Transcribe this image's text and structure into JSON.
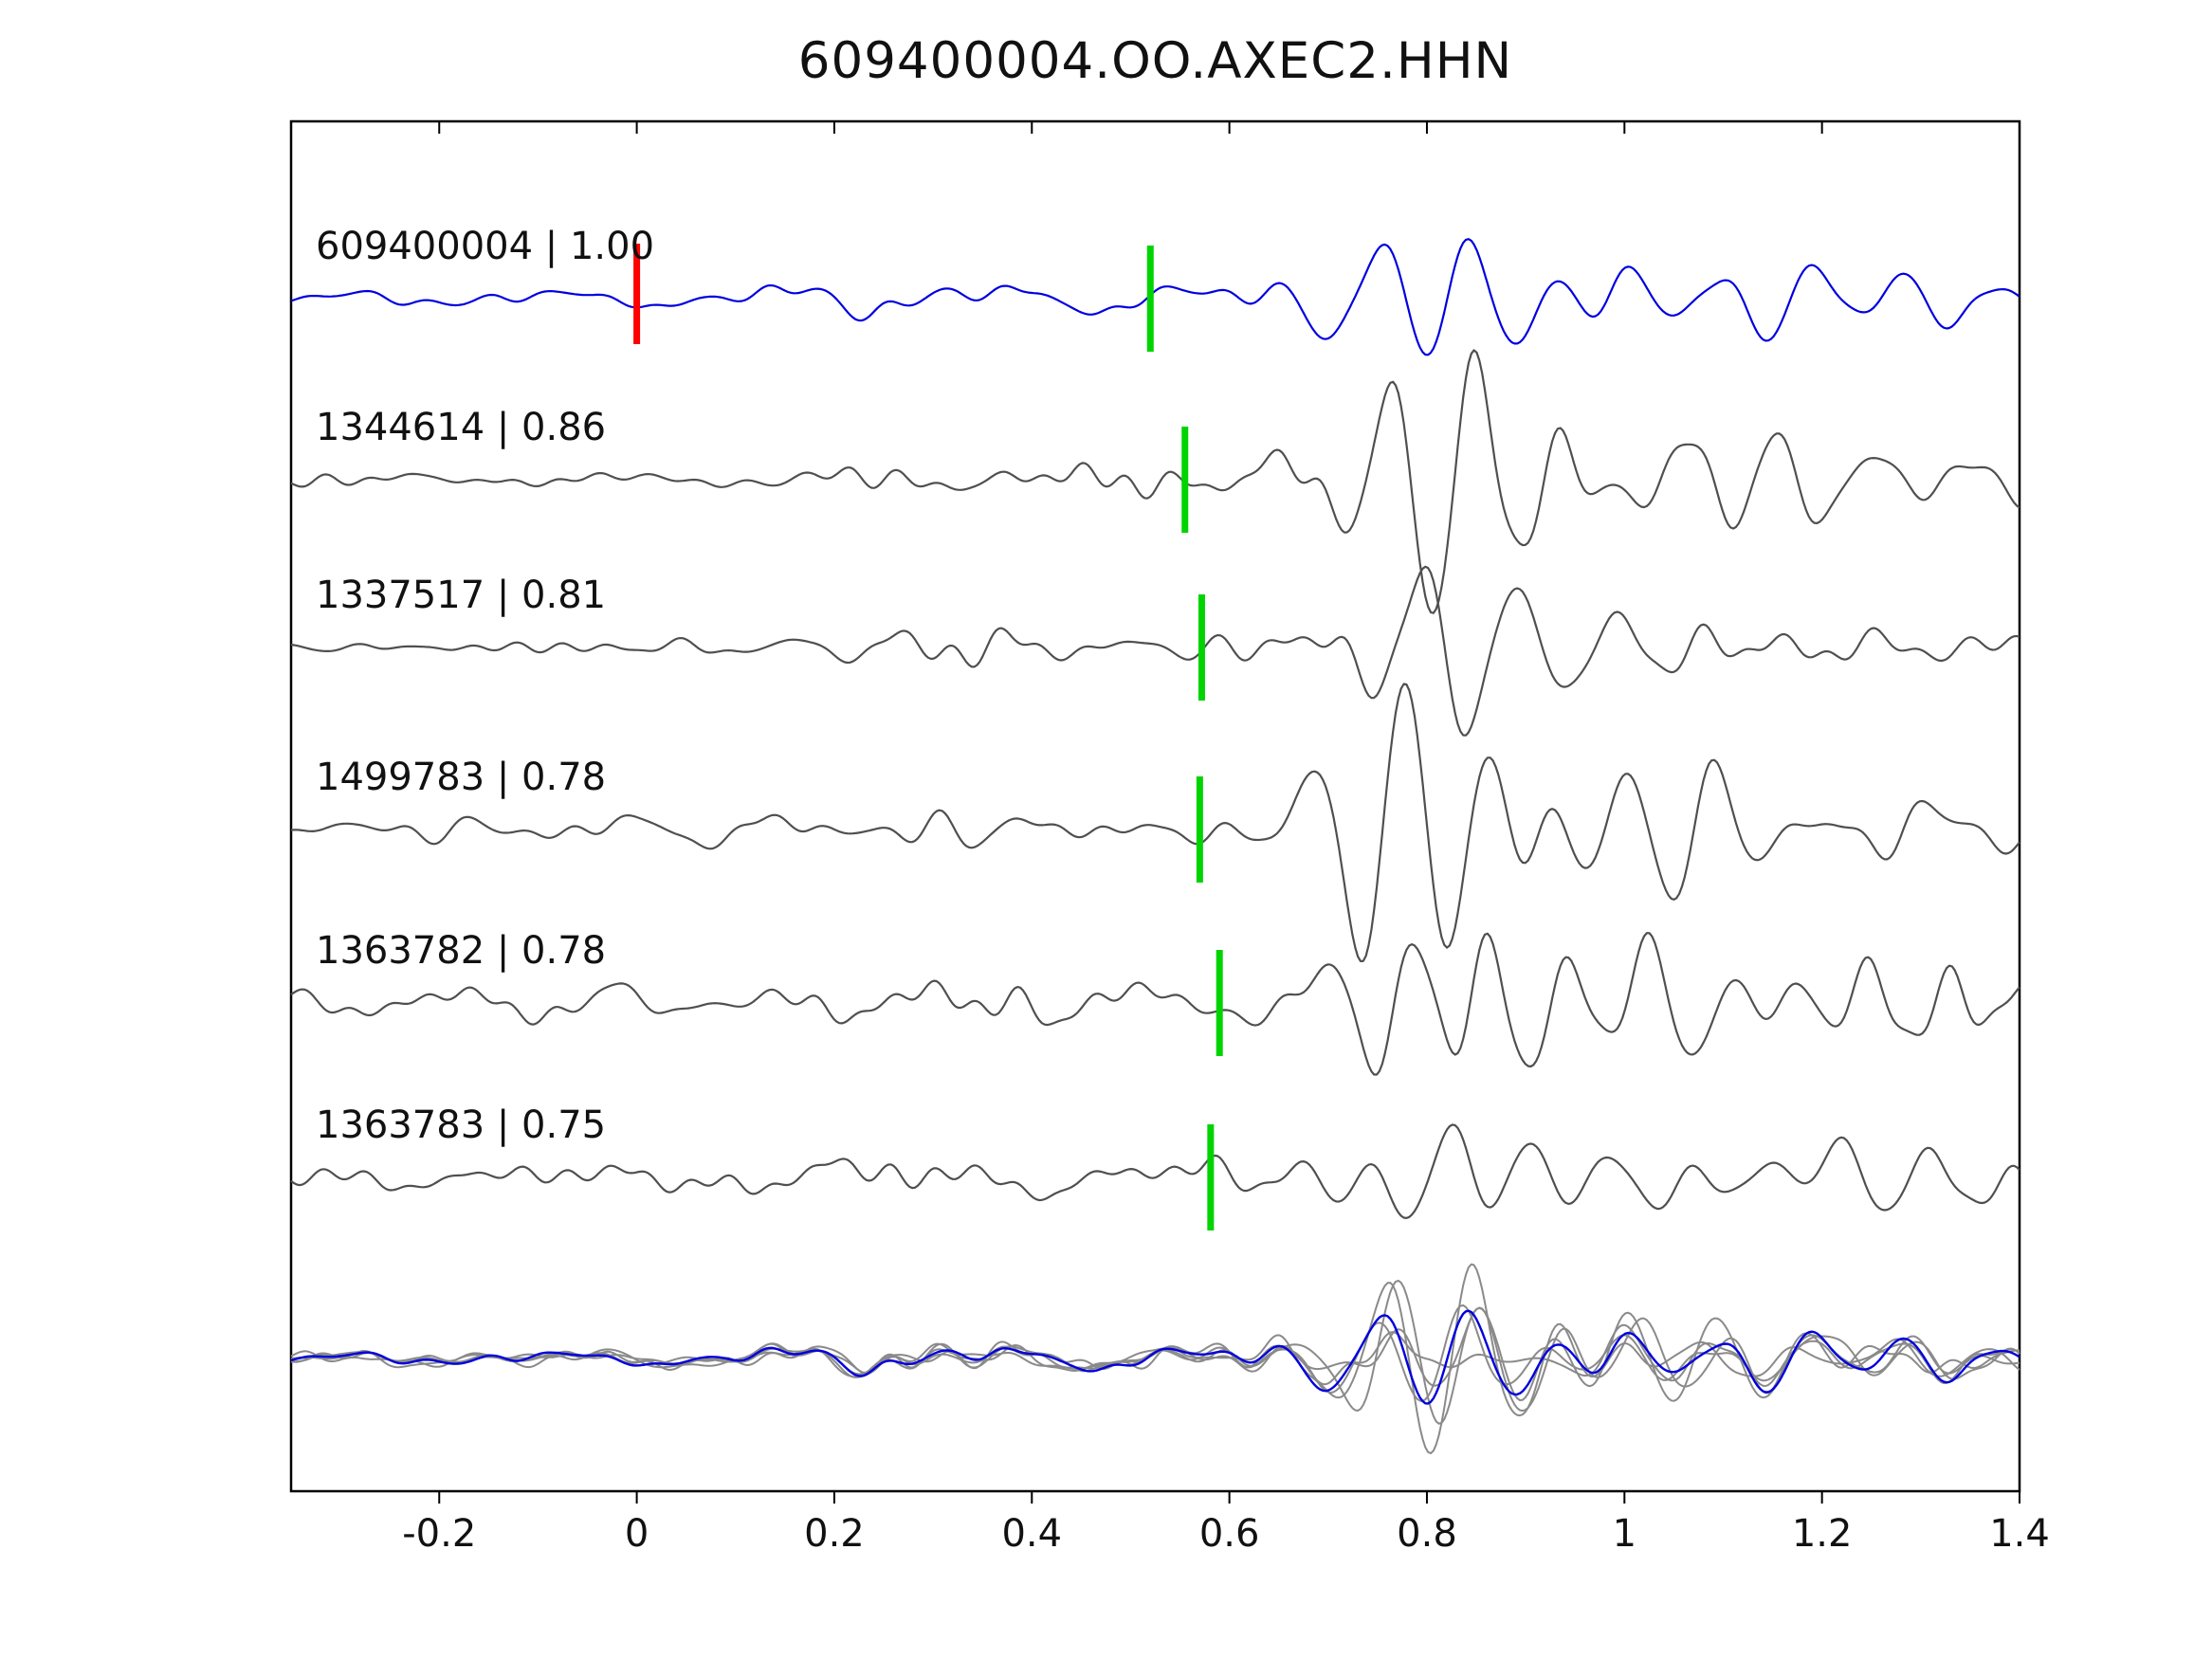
{
  "title": "609400004.OO.AXEC2.HHN",
  "axis": {
    "x_ticks": [
      "-0.2",
      "0",
      "0.2",
      "0.4",
      "0.6",
      "0.8",
      "1",
      "1.2",
      "1.4"
    ]
  },
  "colors": {
    "template_blue": "#0000e0",
    "match_gray": "#4f4f4f",
    "overlay_gray": "#8a8a8a",
    "pick_green": "#00d400",
    "marker_red": "#ff0000",
    "axis_black": "#000000",
    "text": "#111111"
  },
  "chart_data": {
    "type": "line",
    "title": "609400004.OO.AXEC2.HHN",
    "x_range": [
      -0.35,
      1.4
    ],
    "x_ticks": [
      -0.2,
      0,
      0.2,
      0.4,
      0.6,
      0.8,
      1.0,
      1.2,
      1.4
    ],
    "grid": false,
    "legend": "none",
    "traces": [
      {
        "label": "609400004 | 1.00",
        "event_id": "609400004",
        "correlation": 1.0,
        "role": "template",
        "color": "#0000e0",
        "pick_time": 0.52,
        "origin_time_marker": 0.0,
        "seed": 7
      },
      {
        "label": "1344614 | 0.86",
        "event_id": "1344614",
        "correlation": 0.86,
        "role": "match",
        "color": "#4f4f4f",
        "pick_time": 0.555,
        "seed": 23
      },
      {
        "label": "1337517 | 0.81",
        "event_id": "1337517",
        "correlation": 0.81,
        "role": "match",
        "color": "#4f4f4f",
        "pick_time": 0.572,
        "seed": 41
      },
      {
        "label": "1499783 | 0.78",
        "event_id": "1499783",
        "correlation": 0.78,
        "role": "match",
        "color": "#4f4f4f",
        "pick_time": 0.57,
        "seed": 59
      },
      {
        "label": "1363782 | 0.78",
        "event_id": "1363782",
        "correlation": 0.78,
        "role": "match",
        "color": "#4f4f4f",
        "pick_time": 0.59,
        "seed": 73
      },
      {
        "label": "1363783 | 0.75",
        "event_id": "1363783",
        "correlation": 0.75,
        "role": "match",
        "color": "#4f4f4f",
        "pick_time": 0.581,
        "seed": 97
      }
    ],
    "overlay": {
      "note": "all matched traces superimposed with template",
      "gray_color": "#8a8a8a",
      "template_color": "#0000e0"
    },
    "signal_model": {
      "burst_center": 0.78,
      "burst_width": 0.13,
      "coda_center": 1.03,
      "coda_width": 0.19,
      "coda_level": 0.42,
      "tail_center": 1.3,
      "tail_width": 0.22,
      "tail_level": 0.25,
      "burst_freq_range": [
        9,
        14
      ],
      "noise_freq_range": [
        3,
        26
      ],
      "onset_ramp": 0.06
    }
  }
}
